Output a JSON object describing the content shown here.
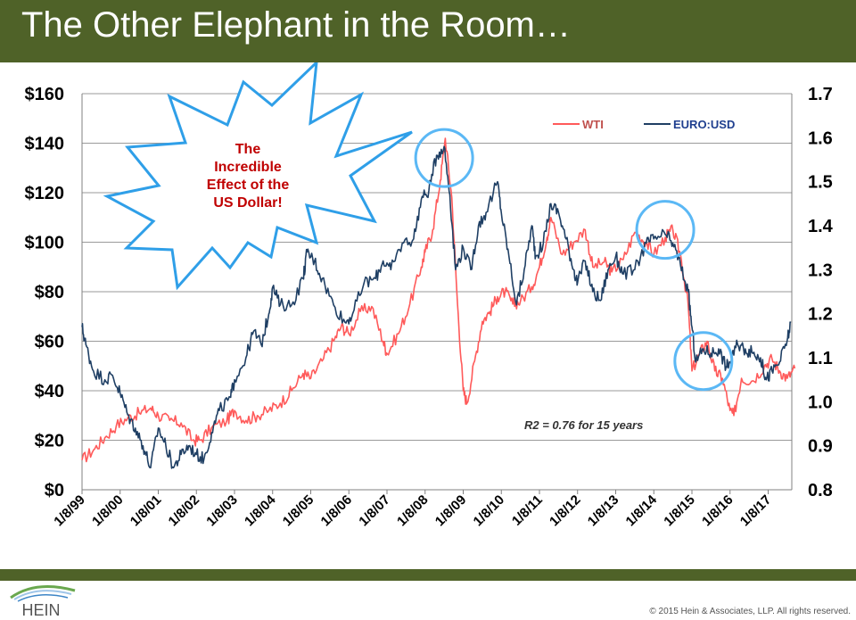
{
  "slide": {
    "title": "The Other Elephant in the Room…",
    "copyright": "© 2015 Hein & Associates, LLP.  All rights reserved.",
    "logo_text": "HEIN"
  },
  "callout": {
    "lines": [
      "The",
      "Incredible",
      "Effect of the",
      "US Dollar!"
    ]
  },
  "annotation": "R2 = 0.76 for 15 years",
  "colors": {
    "title_bar": "#4f6228",
    "wti": "#ff5a5a",
    "eurusd": "#1f3f64",
    "circle": "#5bb8f5",
    "callout_text": "#c00000",
    "burst_stroke": "#2f9fe8",
    "grid": "#9a9a9a"
  },
  "chart_data": {
    "type": "line",
    "legend": [
      "WTI",
      "EURO:USD"
    ],
    "legend_position": "top-right",
    "grid": true,
    "x": [
      "1/8/99",
      "1/8/00",
      "1/8/01",
      "1/8/02",
      "1/8/03",
      "1/8/04",
      "1/8/05",
      "1/8/06",
      "1/8/07",
      "1/8/08",
      "1/8/09",
      "1/8/10",
      "1/8/11",
      "1/8/12",
      "1/8/13",
      "1/8/14",
      "1/8/15",
      "1/8/16",
      "1/8/17"
    ],
    "x_ticks": [
      "1/8/99",
      "1/8/00",
      "1/8/01",
      "1/8/02",
      "1/8/03",
      "1/8/04",
      "1/8/05",
      "1/8/06",
      "1/8/07",
      "1/8/08",
      "1/8/09",
      "1/8/10",
      "1/8/11",
      "1/8/12",
      "1/8/13",
      "1/8/14",
      "1/8/15",
      "1/8/16",
      "1/8/17"
    ],
    "y_left": {
      "ylim": [
        0,
        160
      ],
      "ticks": [
        "$0",
        "$20",
        "$40",
        "$60",
        "$80",
        "$100",
        "$120",
        "$140",
        "$160"
      ]
    },
    "y_right": {
      "ylim": [
        0.8,
        1.7
      ],
      "ticks": [
        "0.8",
        "0.9",
        "1.0",
        "1.1",
        "1.2",
        "1.3",
        "1.4",
        "1.5",
        "1.6",
        "1.7"
      ]
    },
    "series": [
      {
        "name": "WTI",
        "axis": "left",
        "values": [
          [
            1999.0,
            12
          ],
          [
            1999.3,
            16
          ],
          [
            1999.6,
            21
          ],
          [
            1999.9,
            26
          ],
          [
            2000.2,
            29
          ],
          [
            2000.5,
            31
          ],
          [
            2000.8,
            33
          ],
          [
            2001.0,
            30
          ],
          [
            2001.3,
            28
          ],
          [
            2001.6,
            27
          ],
          [
            2001.9,
            20
          ],
          [
            2002.1,
            20
          ],
          [
            2002.4,
            25
          ],
          [
            2002.8,
            28
          ],
          [
            2003.0,
            32
          ],
          [
            2003.3,
            28
          ],
          [
            2003.6,
            30
          ],
          [
            2003.9,
            32
          ],
          [
            2004.2,
            35
          ],
          [
            2004.5,
            40
          ],
          [
            2004.8,
            47
          ],
          [
            2005.0,
            45
          ],
          [
            2005.3,
            52
          ],
          [
            2005.6,
            60
          ],
          [
            2005.8,
            66
          ],
          [
            2006.0,
            63
          ],
          [
            2006.3,
            72
          ],
          [
            2006.6,
            74
          ],
          [
            2006.9,
            60
          ],
          [
            2007.0,
            55
          ],
          [
            2007.3,
            63
          ],
          [
            2007.6,
            75
          ],
          [
            2007.9,
            90
          ],
          [
            2008.0,
            96
          ],
          [
            2008.2,
            105
          ],
          [
            2008.4,
            125
          ],
          [
            2008.53,
            142
          ],
          [
            2008.7,
            118
          ],
          [
            2008.85,
            75
          ],
          [
            2009.0,
            40
          ],
          [
            2009.1,
            35
          ],
          [
            2009.3,
            52
          ],
          [
            2009.5,
            68
          ],
          [
            2009.7,
            72
          ],
          [
            2009.9,
            78
          ],
          [
            2010.1,
            80
          ],
          [
            2010.3,
            75
          ],
          [
            2010.5,
            76
          ],
          [
            2010.8,
            82
          ],
          [
            2011.0,
            90
          ],
          [
            2011.2,
            102
          ],
          [
            2011.3,
            110
          ],
          [
            2011.6,
            95
          ],
          [
            2011.9,
            100
          ],
          [
            2012.2,
            105
          ],
          [
            2012.4,
            90
          ],
          [
            2012.7,
            92
          ],
          [
            2012.9,
            88
          ],
          [
            2013.2,
            93
          ],
          [
            2013.5,
            104
          ],
          [
            2013.8,
            100
          ],
          [
            2014.0,
            95
          ],
          [
            2014.3,
            102
          ],
          [
            2014.5,
            105
          ],
          [
            2014.7,
            95
          ],
          [
            2014.9,
            75
          ],
          [
            2015.0,
            48
          ],
          [
            2015.2,
            55
          ],
          [
            2015.4,
            60
          ],
          [
            2015.6,
            48
          ],
          [
            2015.8,
            45
          ],
          [
            2016.0,
            32
          ],
          [
            2016.1,
            30
          ],
          [
            2016.3,
            45
          ],
          [
            2016.6,
            44
          ],
          [
            2016.9,
            50
          ],
          [
            2017.1,
            53
          ],
          [
            2017.3,
            48
          ],
          [
            2017.5,
            45
          ],
          [
            2017.7,
            49
          ]
        ]
      },
      {
        "name": "EURO:USD",
        "axis": "right",
        "values": [
          [
            1999.0,
            1.17
          ],
          [
            1999.1,
            1.13
          ],
          [
            1999.3,
            1.07
          ],
          [
            1999.6,
            1.05
          ],
          [
            1999.8,
            1.06
          ],
          [
            2000.0,
            1.02
          ],
          [
            2000.2,
            0.97
          ],
          [
            2000.4,
            0.94
          ],
          [
            2000.6,
            0.9
          ],
          [
            2000.8,
            0.85
          ],
          [
            2001.0,
            0.94
          ],
          [
            2001.2,
            0.9
          ],
          [
            2001.4,
            0.85
          ],
          [
            2001.6,
            0.88
          ],
          [
            2001.8,
            0.9
          ],
          [
            2002.0,
            0.88
          ],
          [
            2002.2,
            0.87
          ],
          [
            2002.4,
            0.93
          ],
          [
            2002.6,
            0.98
          ],
          [
            2002.9,
            1.01
          ],
          [
            2003.0,
            1.05
          ],
          [
            2003.3,
            1.1
          ],
          [
            2003.5,
            1.16
          ],
          [
            2003.7,
            1.13
          ],
          [
            2003.9,
            1.2
          ],
          [
            2004.0,
            1.26
          ],
          [
            2004.2,
            1.22
          ],
          [
            2004.5,
            1.22
          ],
          [
            2004.8,
            1.28
          ],
          [
            2004.9,
            1.34
          ],
          [
            2005.1,
            1.32
          ],
          [
            2005.3,
            1.28
          ],
          [
            2005.6,
            1.22
          ],
          [
            2005.9,
            1.18
          ],
          [
            2006.1,
            1.2
          ],
          [
            2006.4,
            1.27
          ],
          [
            2006.7,
            1.28
          ],
          [
            2006.9,
            1.32
          ],
          [
            2007.1,
            1.3
          ],
          [
            2007.4,
            1.36
          ],
          [
            2007.7,
            1.37
          ],
          [
            2007.9,
            1.46
          ],
          [
            2008.1,
            1.48
          ],
          [
            2008.3,
            1.56
          ],
          [
            2008.5,
            1.58
          ],
          [
            2008.65,
            1.47
          ],
          [
            2008.8,
            1.3
          ],
          [
            2009.0,
            1.35
          ],
          [
            2009.2,
            1.3
          ],
          [
            2009.4,
            1.4
          ],
          [
            2009.6,
            1.43
          ],
          [
            2009.9,
            1.5
          ],
          [
            2010.0,
            1.43
          ],
          [
            2010.2,
            1.33
          ],
          [
            2010.4,
            1.22
          ],
          [
            2010.6,
            1.3
          ],
          [
            2010.8,
            1.4
          ],
          [
            2010.9,
            1.33
          ],
          [
            2011.1,
            1.36
          ],
          [
            2011.3,
            1.45
          ],
          [
            2011.5,
            1.43
          ],
          [
            2011.7,
            1.37
          ],
          [
            2011.9,
            1.3
          ],
          [
            2012.0,
            1.27
          ],
          [
            2012.2,
            1.32
          ],
          [
            2012.4,
            1.25
          ],
          [
            2012.6,
            1.23
          ],
          [
            2012.8,
            1.3
          ],
          [
            2013.0,
            1.33
          ],
          [
            2013.2,
            1.29
          ],
          [
            2013.5,
            1.3
          ],
          [
            2013.8,
            1.36
          ],
          [
            2014.0,
            1.37
          ],
          [
            2014.3,
            1.38
          ],
          [
            2014.5,
            1.36
          ],
          [
            2014.7,
            1.31
          ],
          [
            2014.9,
            1.25
          ],
          [
            2015.0,
            1.17
          ],
          [
            2015.1,
            1.09
          ],
          [
            2015.3,
            1.12
          ],
          [
            2015.5,
            1.11
          ],
          [
            2015.7,
            1.12
          ],
          [
            2015.9,
            1.08
          ],
          [
            2016.0,
            1.09
          ],
          [
            2016.2,
            1.13
          ],
          [
            2016.4,
            1.12
          ],
          [
            2016.6,
            1.11
          ],
          [
            2016.8,
            1.1
          ],
          [
            2016.95,
            1.05
          ],
          [
            2017.1,
            1.07
          ],
          [
            2017.3,
            1.09
          ],
          [
            2017.5,
            1.14
          ],
          [
            2017.6,
            1.18
          ]
        ]
      }
    ],
    "highlight_circles": [
      {
        "x": 2008.5,
        "y_left": 134
      },
      {
        "x": 2014.3,
        "y_left": 105
      },
      {
        "x": 2015.3,
        "y_left": 52
      }
    ]
  }
}
